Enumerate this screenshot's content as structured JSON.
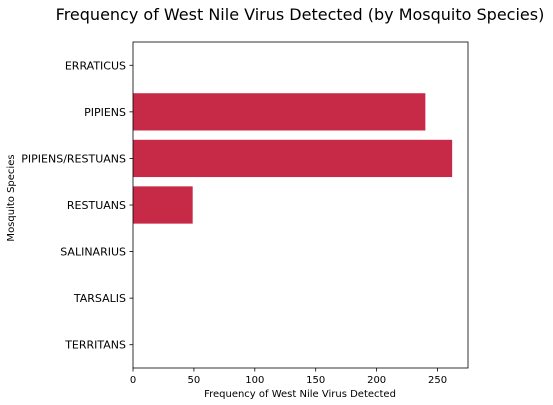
{
  "chart_data": {
    "type": "bar",
    "orientation": "horizontal",
    "title": "Frequency of West Nile Virus Detected (by Mosquito Species)",
    "xlabel": "Frequency of West Nile Virus Detected",
    "ylabel": "Mosquito Species",
    "categories": [
      "ERRATICUS",
      "PIPIENS",
      "PIPIENS/RESTUANS",
      "RESTUANS",
      "SALINARIUS",
      "TARSALIS",
      "TERRITANS"
    ],
    "values": [
      0,
      240,
      262,
      49,
      0,
      0,
      0
    ],
    "xlim": [
      0,
      275
    ],
    "xticks": [
      0,
      50,
      100,
      150,
      200,
      250
    ],
    "grid": false,
    "bar_color": "#c62a47"
  }
}
